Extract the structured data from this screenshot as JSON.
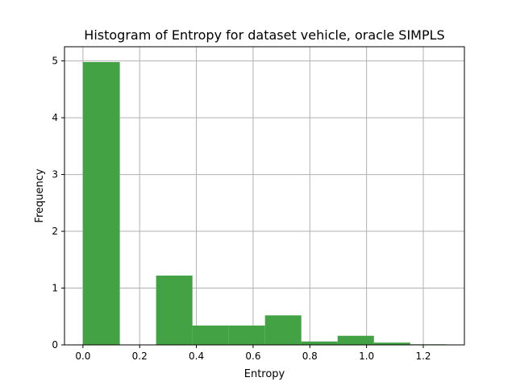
{
  "chart_data": {
    "type": "bar",
    "title": "Histogram of Entropy for dataset vehicle, oracle SIMPLS",
    "xlabel": "Entropy",
    "ylabel": "Frequency",
    "xlim": [
      -0.065,
      1.345
    ],
    "ylim": [
      0,
      5.25
    ],
    "grid": true,
    "bar_color": "#43a243",
    "bins": [
      {
        "x0": 0.0,
        "x1": 0.13,
        "value": 4.98
      },
      {
        "x0": 0.13,
        "x1": 0.258,
        "value": 0.0
      },
      {
        "x0": 0.258,
        "x1": 0.386,
        "value": 1.22
      },
      {
        "x0": 0.386,
        "x1": 0.514,
        "value": 0.34
      },
      {
        "x0": 0.514,
        "x1": 0.642,
        "value": 0.34
      },
      {
        "x0": 0.642,
        "x1": 0.77,
        "value": 0.52
      },
      {
        "x0": 0.77,
        "x1": 0.898,
        "value": 0.06
      },
      {
        "x0": 0.898,
        "x1": 1.026,
        "value": 0.16
      },
      {
        "x0": 1.026,
        "x1": 1.154,
        "value": 0.04
      },
      {
        "x0": 1.154,
        "x1": 1.282,
        "value": 0.01
      }
    ],
    "x_ticks": [
      {
        "value": 0.0,
        "label": "0.0"
      },
      {
        "value": 0.2,
        "label": "0.2"
      },
      {
        "value": 0.4,
        "label": "0.4"
      },
      {
        "value": 0.6,
        "label": "0.6"
      },
      {
        "value": 0.8,
        "label": "0.8"
      },
      {
        "value": 1.0,
        "label": "1.0"
      },
      {
        "value": 1.2,
        "label": "1.2"
      }
    ],
    "y_ticks": [
      {
        "value": 0,
        "label": "0"
      },
      {
        "value": 1,
        "label": "1"
      },
      {
        "value": 2,
        "label": "2"
      },
      {
        "value": 3,
        "label": "3"
      },
      {
        "value": 4,
        "label": "4"
      },
      {
        "value": 5,
        "label": "5"
      }
    ]
  }
}
